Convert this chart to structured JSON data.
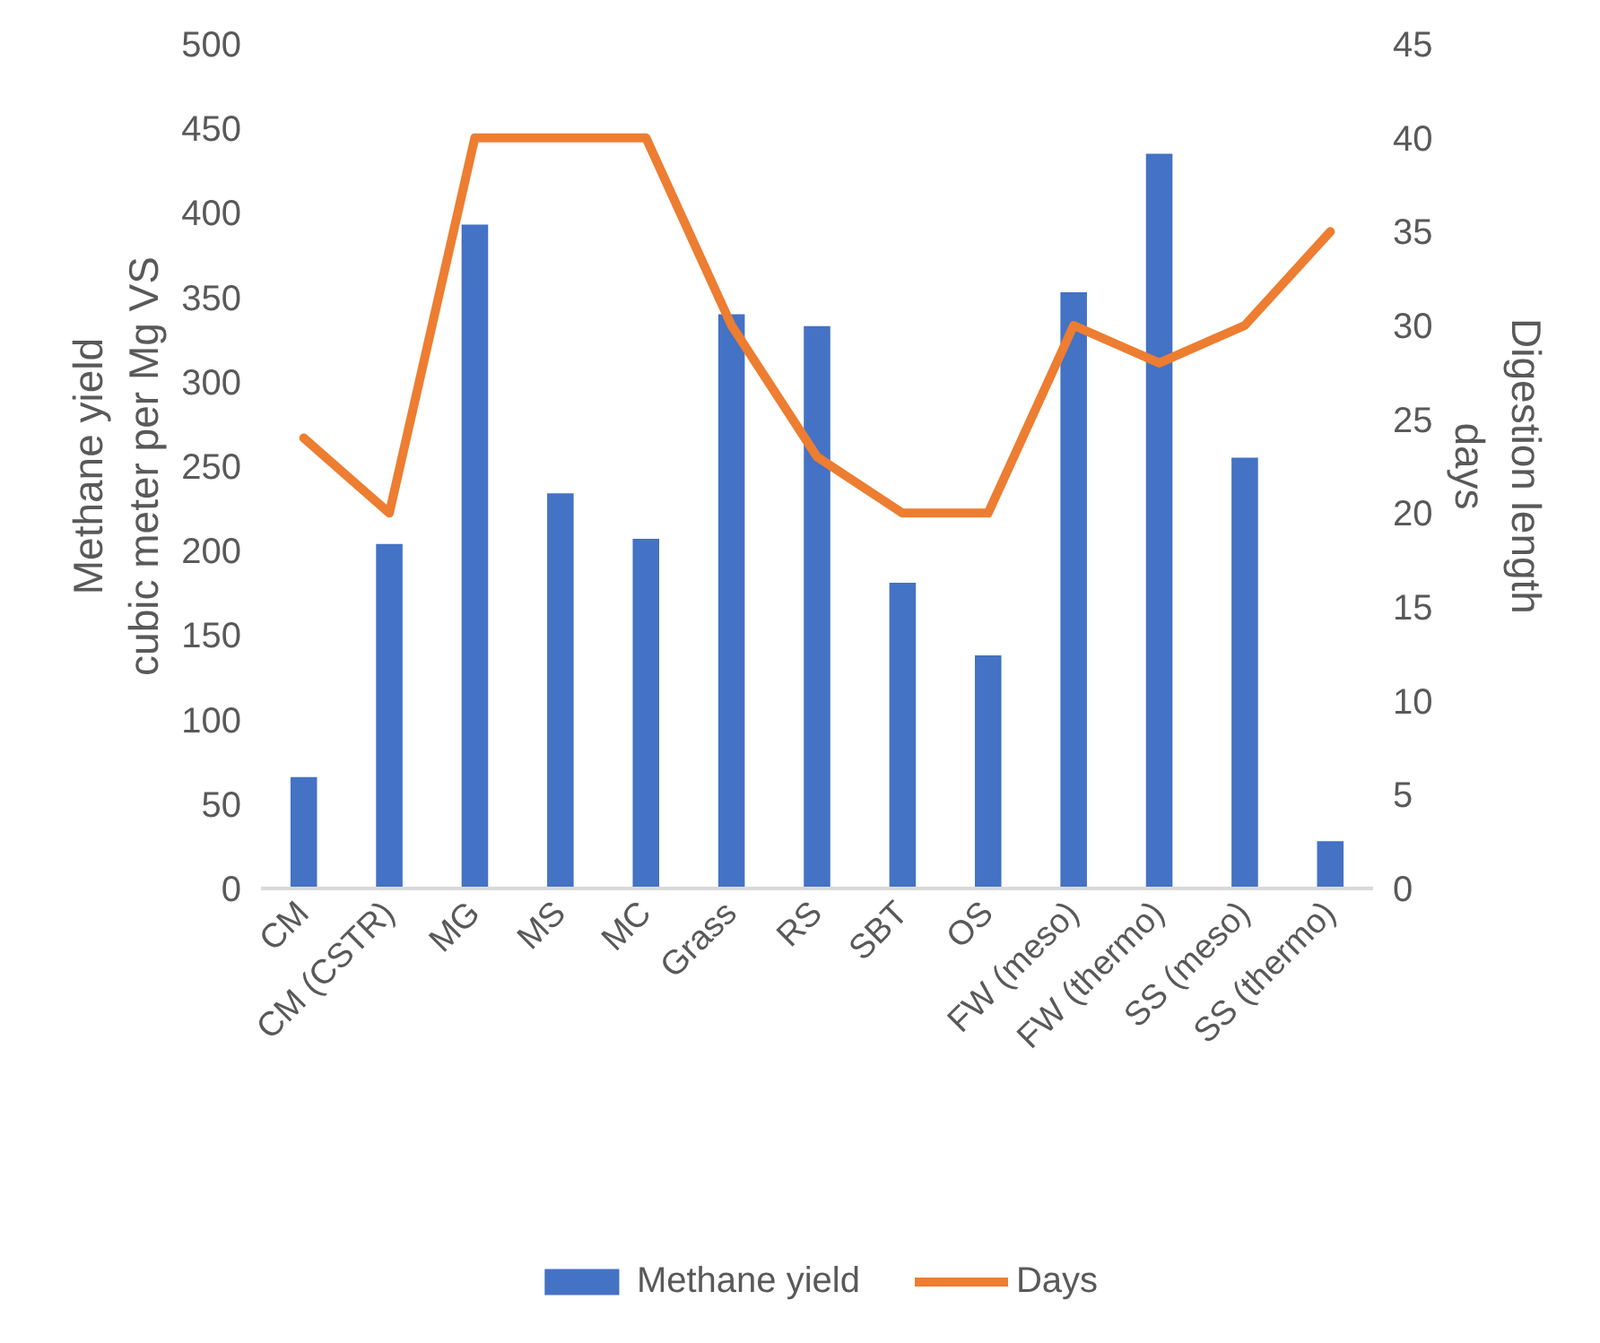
{
  "chart_data": {
    "type": "bar",
    "categories": [
      "CM",
      "CM (CSTR)",
      "MG",
      "MS",
      "MC",
      "Grass",
      "RS",
      "SBT",
      "OS",
      "FW (meso)",
      "FW (thermo)",
      "SS (meso)",
      "SS (thermo)"
    ],
    "series": [
      {
        "name": "Methane yield",
        "color": "#4472c4",
        "values": [
          66,
          204,
          393,
          234,
          207,
          340,
          333,
          181,
          138,
          353,
          435,
          255,
          28
        ]
      },
      {
        "name": "Days",
        "type": "line",
        "axis": "y2",
        "color": "#ed7d31",
        "values": [
          24,
          20,
          40,
          40,
          40,
          30,
          23,
          20,
          20,
          30,
          28,
          30,
          35
        ]
      }
    ],
    "ylabel": "Methane yield\ncubic meter per Mg VS",
    "y2label": "Digestion length\ndays",
    "ylim": [
      0,
      500
    ],
    "yticks": [
      0,
      50,
      100,
      150,
      200,
      250,
      300,
      350,
      400,
      450,
      500
    ],
    "y2lim": [
      0,
      45
    ],
    "y2ticks": [
      0,
      5,
      10,
      15,
      20,
      25,
      30,
      35,
      40,
      45
    ],
    "legend": "bottom"
  }
}
